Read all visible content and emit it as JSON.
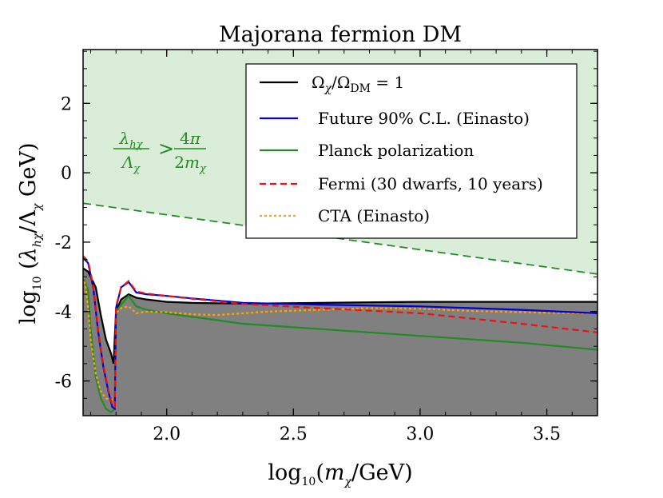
{
  "chart_data": {
    "type": "line",
    "title": "Majorana fermion DM",
    "xlabel": "log10(mχ/GeV)",
    "ylabel": "log10 (λhχ/Λχ GeV)",
    "xlim": [
      1.67,
      3.7
    ],
    "ylim": [
      -7.0,
      3.55
    ],
    "x_ticks": [
      2.0,
      2.5,
      3.0,
      3.5
    ],
    "x_tick_labels": [
      "2.0",
      "2.5",
      "3.0",
      "3.5"
    ],
    "y_ticks": [
      2,
      0,
      -2,
      -4,
      -6
    ],
    "y_tick_labels": [
      "2",
      "0",
      "-2",
      "-4",
      "-6"
    ],
    "region_label": "λhχ/Λχ > 4π/(2mχ)",
    "colors": {
      "relic": "#000000",
      "future": "#0000dd",
      "planck": "#228b22",
      "fermi": "#ee1111",
      "cta": "#ffa500",
      "region_fill": "#d9edd9",
      "excluded_fill": "#808080"
    },
    "series": [
      {
        "name": "relic",
        "label": "Ω_χ/Ω_DM = 1",
        "style": "solid",
        "x": [
          1.67,
          1.69,
          1.72,
          1.74,
          1.76,
          1.78,
          1.79,
          1.8,
          1.82,
          1.85,
          1.88,
          1.92,
          2.0,
          2.1,
          2.3,
          2.6,
          3.0,
          3.4,
          3.7
        ],
        "y": [
          -2.75,
          -2.85,
          -3.3,
          -4.1,
          -4.8,
          -5.2,
          -5.5,
          -4.0,
          -3.65,
          -3.5,
          -3.6,
          -3.65,
          -3.72,
          -3.75,
          -3.77,
          -3.75,
          -3.72,
          -3.72,
          -3.72
        ]
      },
      {
        "name": "future",
        "label": "Future 90% C.L. (Einasto)",
        "style": "solid",
        "x": [
          1.67,
          1.69,
          1.71,
          1.73,
          1.75,
          1.77,
          1.785,
          1.795,
          1.8,
          1.82,
          1.85,
          1.88,
          1.92,
          2.0,
          2.1,
          2.3,
          2.6,
          3.0,
          3.4,
          3.7
        ],
        "y": [
          -2.45,
          -2.6,
          -3.3,
          -4.6,
          -5.6,
          -6.3,
          -6.75,
          -6.8,
          -3.9,
          -3.3,
          -3.15,
          -3.45,
          -3.5,
          -3.55,
          -3.62,
          -3.75,
          -3.8,
          -3.85,
          -3.95,
          -4.05
        ]
      },
      {
        "name": "planck",
        "label": "Planck polarization",
        "style": "solid",
        "x": [
          1.67,
          1.69,
          1.7,
          1.72,
          1.74,
          1.76,
          1.78,
          1.795,
          1.8,
          1.82,
          1.85,
          1.88,
          1.92,
          2.0,
          2.1,
          2.3,
          2.6,
          3.0,
          3.4,
          3.7
        ],
        "y": [
          -3.0,
          -3.4,
          -4.5,
          -5.9,
          -6.5,
          -6.8,
          -6.9,
          -6.8,
          -4.0,
          -3.8,
          -3.55,
          -3.85,
          -3.95,
          -4.05,
          -4.15,
          -4.35,
          -4.5,
          -4.7,
          -4.9,
          -5.1
        ]
      },
      {
        "name": "fermi",
        "label": "Fermi (30 dwarfs, 10 years)",
        "style": "dashed",
        "x": [
          1.67,
          1.69,
          1.71,
          1.73,
          1.75,
          1.77,
          1.785,
          1.795,
          1.8,
          1.82,
          1.85,
          1.88,
          1.92,
          2.0,
          2.1,
          2.3,
          2.6,
          3.0,
          3.4,
          3.7
        ],
        "y": [
          -2.4,
          -2.55,
          -3.25,
          -4.55,
          -5.55,
          -6.25,
          -6.7,
          -6.75,
          -3.85,
          -3.3,
          -3.12,
          -3.42,
          -3.48,
          -3.55,
          -3.63,
          -3.78,
          -3.9,
          -4.05,
          -4.35,
          -4.6
        ]
      },
      {
        "name": "cta",
        "label": "CTA (Einasto)",
        "style": "dotted",
        "x": [
          1.67,
          1.68,
          1.69,
          1.7,
          1.72,
          1.74,
          1.76,
          1.78,
          1.795,
          1.8,
          1.82,
          1.85,
          1.88,
          1.92,
          2.0,
          2.05,
          2.1,
          2.2,
          2.4,
          2.6,
          2.8,
          3.0,
          3.2,
          3.4,
          3.6,
          3.7
        ],
        "y": [
          -3.0,
          -3.3,
          -3.9,
          -4.8,
          -5.8,
          -6.3,
          -6.5,
          -6.55,
          -6.5,
          -4.05,
          -3.9,
          -3.85,
          -4.05,
          -4.0,
          -4.02,
          -4.05,
          -4.08,
          -4.1,
          -4.0,
          -3.95,
          -3.9,
          -3.92,
          -3.98,
          -4.02,
          -4.05,
          -4.05
        ]
      }
    ],
    "unitarity_line": {
      "style": "dashed",
      "x": [
        1.67,
        3.7
      ],
      "y": [
        -0.88,
        -2.92
      ]
    }
  }
}
